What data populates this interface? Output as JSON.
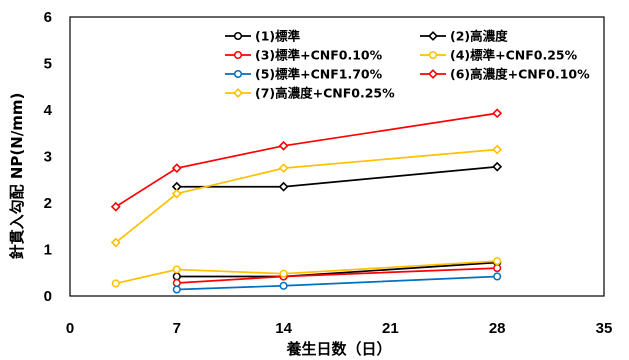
{
  "chart_data": {
    "type": "line",
    "xlabel": "養生日数（日）",
    "ylabel": "針貫入勾配 NP(N/mm)",
    "xlim": [
      0,
      35
    ],
    "ylim": [
      0,
      6
    ],
    "xticks": [
      0,
      7,
      14,
      21,
      28,
      35
    ],
    "yticks": [
      0,
      1,
      2,
      3,
      4,
      5,
      6
    ],
    "grid": false,
    "legend": {
      "placement": "top",
      "columns": 2
    },
    "series": [
      {
        "name": "(1)標準",
        "color": "#000000",
        "marker": "circle",
        "x": [
          7,
          14,
          28
        ],
        "y": [
          0.42,
          0.42,
          0.72
        ]
      },
      {
        "name": "(2)高濃度",
        "color": "#000000",
        "marker": "diamond",
        "x": [
          7,
          14,
          28
        ],
        "y": [
          2.35,
          2.35,
          2.78
        ]
      },
      {
        "name": "(3)標準+CNF0.10%",
        "color": "#ff0000",
        "marker": "circle",
        "x": [
          7,
          14,
          28
        ],
        "y": [
          0.28,
          0.42,
          0.6
        ]
      },
      {
        "name": "(4)標準+CNF0.25%",
        "color": "#ffc000",
        "marker": "circle",
        "x": [
          3,
          7,
          14,
          28
        ],
        "y": [
          0.27,
          0.57,
          0.48,
          0.75
        ]
      },
      {
        "name": "(5)標準+CNF1.70%",
        "color": "#0070c0",
        "marker": "circle",
        "x": [
          7,
          14,
          28
        ],
        "y": [
          0.14,
          0.22,
          0.42
        ]
      },
      {
        "name": "(6)高濃度+CNF0.10%",
        "color": "#ff0000",
        "marker": "diamond",
        "x": [
          3,
          7,
          14,
          28
        ],
        "y": [
          1.92,
          2.75,
          3.23,
          3.93
        ]
      },
      {
        "name": "(7)高濃度+CNF0.25%",
        "color": "#ffc000",
        "marker": "diamond",
        "x": [
          3,
          7,
          14,
          28
        ],
        "y": [
          1.15,
          2.2,
          2.75,
          3.15
        ]
      }
    ]
  }
}
